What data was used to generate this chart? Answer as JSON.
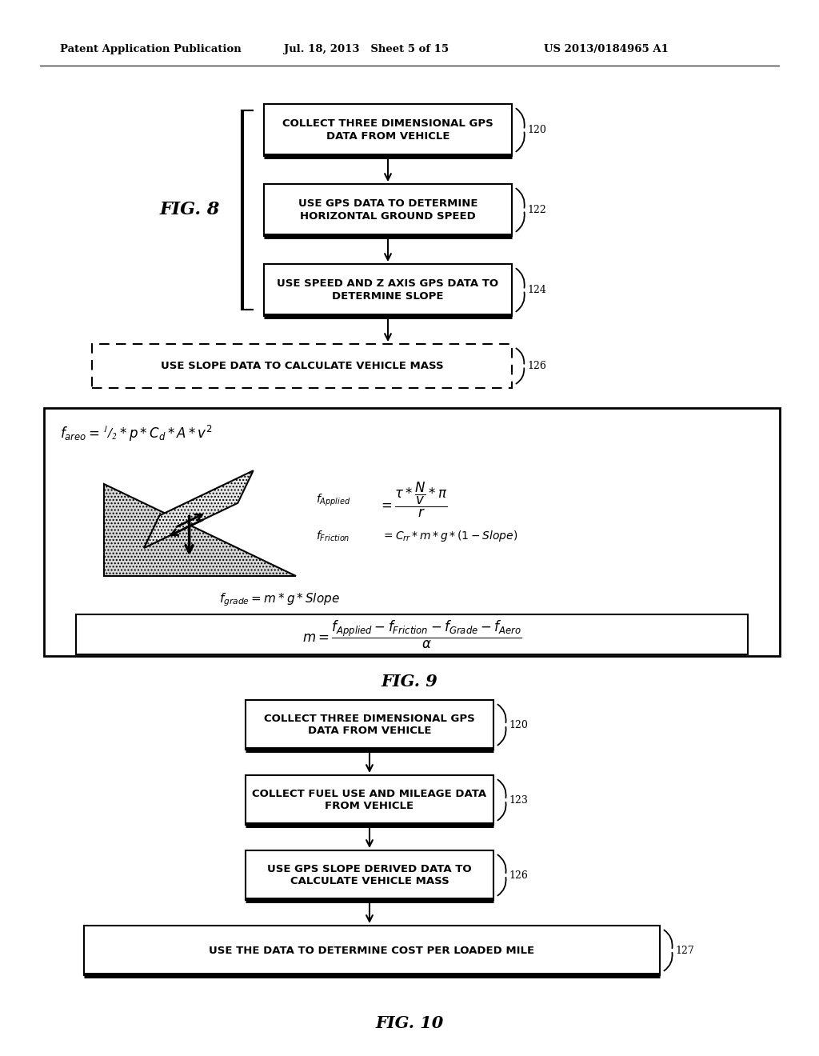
{
  "bg_color": "#ffffff",
  "header_left": "Patent Application Publication",
  "header_mid": "Jul. 18, 2013   Sheet 5 of 15",
  "header_right": "US 2013/0184965 A1",
  "fig8_label": "FIG. 8",
  "fig9_label": "FIG. 9",
  "fig10_label": "FIG. 10",
  "fig8_boxes": [
    {
      "text": "COLLECT THREE DIMENSIONAL GPS\nDATA FROM VEHICLE",
      "tag": "120",
      "dashed": false
    },
    {
      "text": "USE GPS DATA TO DETERMINE\nHORIZONTAL GROUND SPEED",
      "tag": "122",
      "dashed": false
    },
    {
      "text": "USE SPEED AND Z AXIS GPS DATA TO\nDETERMINE SLOPE",
      "tag": "124",
      "dashed": false
    },
    {
      "text": "USE SLOPE DATA TO CALCULATE VEHICLE MASS",
      "tag": "126",
      "dashed": true
    }
  ],
  "fig10_boxes": [
    {
      "text": "COLLECT THREE DIMENSIONAL GPS\nDATA FROM VEHICLE",
      "tag": "120",
      "dashed": false
    },
    {
      "text": "COLLECT FUEL USE AND MILEAGE DATA\nFROM VEHICLE",
      "tag": "123",
      "dashed": false
    },
    {
      "text": "USE GPS SLOPE DERIVED DATA TO\nCALCULATE VEHICLE MASS",
      "tag": "126",
      "dashed": false
    },
    {
      "text": "USE THE DATA TO DETERMINE COST PER LOADED MILE",
      "tag": "127",
      "dashed": false,
      "wide": true
    }
  ]
}
